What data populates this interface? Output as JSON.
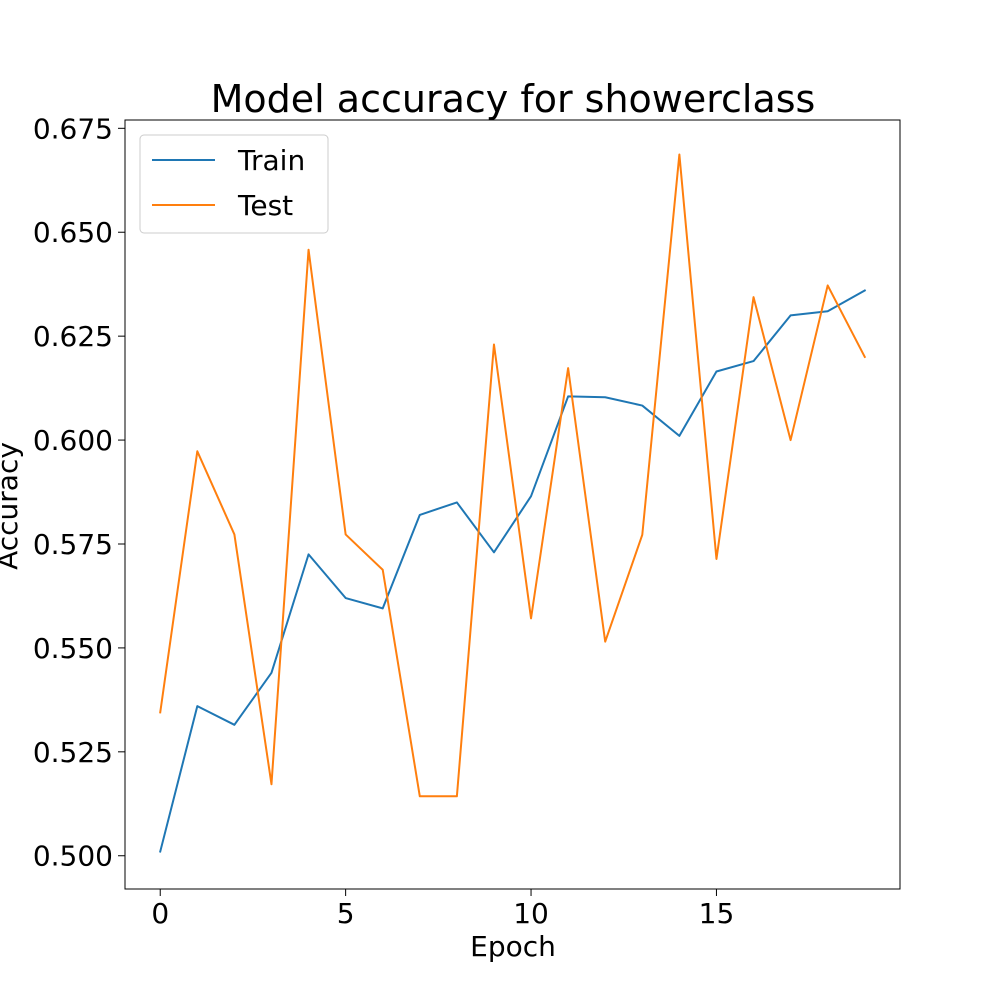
{
  "chart_data": {
    "type": "line",
    "title": "Model accuracy for showerclass",
    "xlabel": "Epoch",
    "ylabel": "Accuracy",
    "xlim": [
      -0.95,
      19.95
    ],
    "ylim": [
      0.492,
      0.677
    ],
    "xticks": [
      0,
      5,
      10,
      15
    ],
    "xtick_labels": [
      "0",
      "5",
      "10",
      "15"
    ],
    "yticks": [
      0.5,
      0.525,
      0.55,
      0.575,
      0.6,
      0.625,
      0.65,
      0.675
    ],
    "ytick_labels": [
      "0.500",
      "0.525",
      "0.550",
      "0.575",
      "0.600",
      "0.625",
      "0.650",
      "0.675"
    ],
    "grid": false,
    "legend": "upper-left",
    "x": [
      0,
      1,
      2,
      3,
      4,
      5,
      6,
      7,
      8,
      9,
      10,
      11,
      12,
      13,
      14,
      15,
      16,
      17,
      18,
      19
    ],
    "series": [
      {
        "name": "Train",
        "color": "#1f77b4",
        "values": [
          0.501,
          0.536,
          0.5315,
          0.544,
          0.5725,
          0.562,
          0.5595,
          0.582,
          0.585,
          0.573,
          0.5865,
          0.6105,
          0.6103,
          0.6083,
          0.601,
          0.6165,
          0.619,
          0.63,
          0.631,
          0.636
        ]
      },
      {
        "name": "Test",
        "color": "#ff7f0e",
        "values": [
          0.5345,
          0.5973,
          0.5773,
          0.5172,
          0.6458,
          0.5773,
          0.5688,
          0.5143,
          0.5143,
          0.623,
          0.5571,
          0.6173,
          0.5515,
          0.5772,
          0.6687,
          0.5714,
          0.6344,
          0.6,
          0.6372,
          0.62
        ]
      }
    ]
  }
}
